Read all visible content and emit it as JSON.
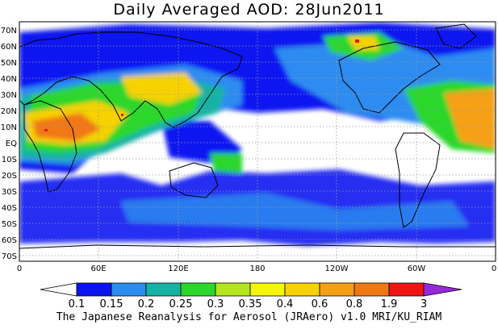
{
  "title": "Daily Averaged AOD: 28Jun2011",
  "credit": "The Japanese Reanalysis for Aerosol (JRAero) v1.0 MRI/KU_RIAM",
  "map": {
    "lat_labels": [
      "70N",
      "60N",
      "50N",
      "40N",
      "30N",
      "20N",
      "10N",
      "EQ",
      "10S",
      "20S",
      "30S",
      "40S",
      "50S",
      "60S",
      "70S"
    ],
    "lon_labels": [
      "0",
      "60E",
      "120E",
      "180",
      "120W",
      "60W",
      "0"
    ]
  },
  "colorbar": {
    "labels": [
      "0.1",
      "0.15",
      "0.2",
      "0.25",
      "0.3",
      "0.35",
      "0.4",
      "0.6",
      "0.8",
      "1.9",
      "3"
    ],
    "colors": [
      "#ffffff",
      "#0a14f0",
      "#2d8cf0",
      "#16b3a5",
      "#2ad72a",
      "#b4e61e",
      "#f5f50a",
      "#f5d200",
      "#f5a014",
      "#f07814",
      "#f01414",
      "#9628dc"
    ]
  }
}
